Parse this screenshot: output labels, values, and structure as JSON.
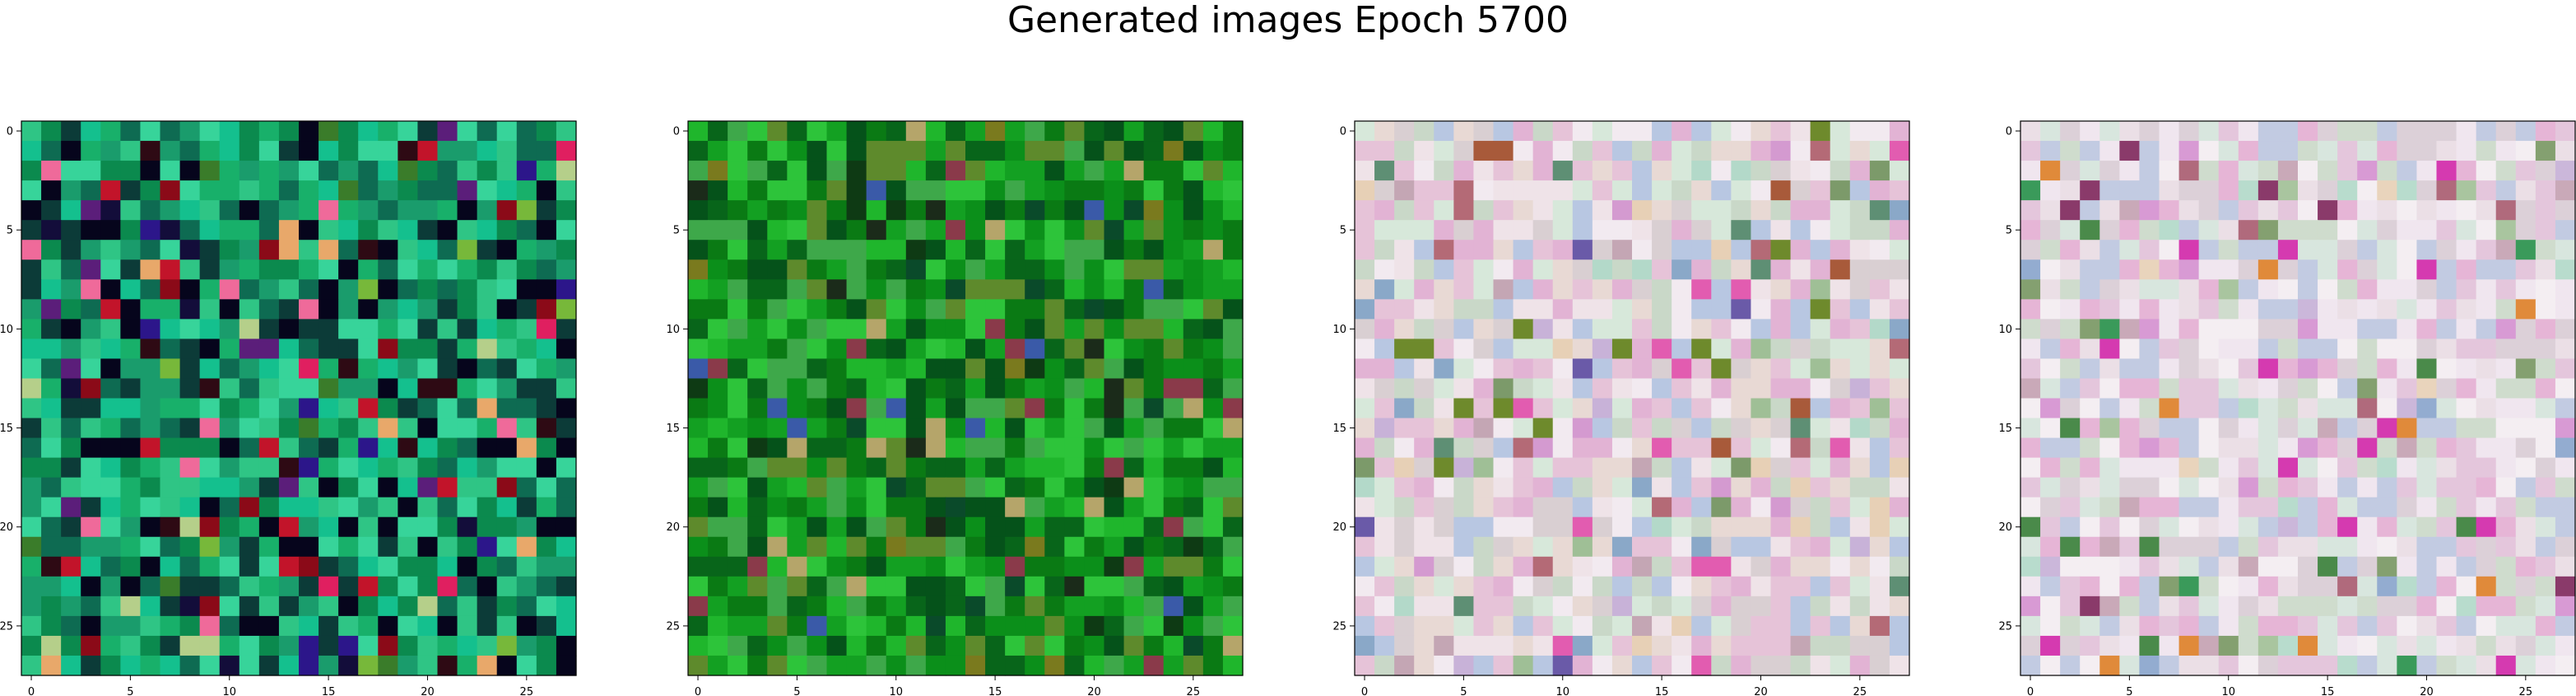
{
  "figure": {
    "title": "Generated images Epoch 5700"
  },
  "chart_data": [
    {
      "type": "heatmap",
      "title": "",
      "xlabel": "",
      "ylabel": "",
      "size": [
        28,
        28
      ],
      "xlim": [
        -0.5,
        27.5
      ],
      "ylim": [
        27.5,
        -0.5
      ],
      "x_ticks": [
        0,
        5,
        10,
        15,
        20,
        25
      ],
      "y_ticks": [
        0,
        5,
        10,
        15,
        20,
        25
      ],
      "grid": false,
      "palette": [
        "#0b8a4e",
        "#18b06a",
        "#2fc585",
        "#37d49a",
        "#1a9c6c",
        "#0e6b52",
        "#14c08e",
        "#0c3b38",
        "#06051c",
        "#130d3a",
        "#2e0a14",
        "#8b0a18",
        "#c2142a",
        "#e01f60",
        "#ef6a9a",
        "#3a7c2a",
        "#77b83a",
        "#b5cf8a",
        "#e8a86a",
        "#5b1e7a",
        "#2c168a"
      ],
      "seed": 11
    },
    {
      "type": "heatmap",
      "title": "",
      "xlabel": "",
      "ylabel": "",
      "size": [
        28,
        28
      ],
      "xlim": [
        -0.5,
        27.5
      ],
      "ylim": [
        27.5,
        -0.5
      ],
      "x_ticks": [
        0,
        5,
        10,
        15,
        20,
        25
      ],
      "y_ticks": [
        0,
        5,
        10,
        15,
        20,
        25
      ],
      "grid": false,
      "palette": [
        "#0a7a14",
        "#0b8f1a",
        "#13a022",
        "#1fb62c",
        "#08651a",
        "#05521a",
        "#2dc43a",
        "#3ea84a",
        "#5e8a2c",
        "#7a7a1e",
        "#0a4a2a",
        "#1b2b1a",
        "#8a3a4a",
        "#3a5aa8",
        "#b5a56a",
        "#0e3a14"
      ],
      "seed": 23
    },
    {
      "type": "heatmap",
      "title": "",
      "xlabel": "",
      "ylabel": "",
      "size": [
        28,
        28
      ],
      "xlim": [
        -0.5,
        27.5
      ],
      "ylim": [
        27.5,
        -0.5
      ],
      "x_ticks": [
        0,
        5,
        10,
        15,
        20,
        25
      ],
      "y_ticks": [
        0,
        5,
        10,
        15,
        20,
        25
      ],
      "grid": false,
      "palette": [
        "#e8d9d4",
        "#efe3e8",
        "#d9cfd2",
        "#e6c3d8",
        "#c9d8c8",
        "#d7e8da",
        "#b8c7e2",
        "#e2b3d4",
        "#f2eaf0",
        "#c4a6b4",
        "#9fbf96",
        "#8aa8c8",
        "#d49ad0",
        "#e7d0b6",
        "#b3d9c9",
        "#c8b2d8",
        "#7c9a6a",
        "#b46a76",
        "#6a5aa8",
        "#e25cb0",
        "#6e8a2c",
        "#a85a3a",
        "#5e8f74"
      ],
      "seed": 37
    },
    {
      "type": "heatmap",
      "title": "",
      "xlabel": "",
      "ylabel": "",
      "size": [
        28,
        28
      ],
      "xlim": [
        -0.5,
        27.5
      ],
      "ylim": [
        27.5,
        -0.5
      ],
      "x_ticks": [
        0,
        5,
        10,
        15,
        20,
        25
      ],
      "y_ticks": [
        0,
        5,
        10,
        15,
        20,
        25
      ],
      "grid": false,
      "palette": [
        "#ebdfe6",
        "#f0e6ef",
        "#dcd0d8",
        "#e4c6dc",
        "#cfdccd",
        "#d8e6de",
        "#c2cbe2",
        "#e6b5d6",
        "#f4eef2",
        "#c9a9b8",
        "#a9c59f",
        "#93acd0",
        "#d89ad4",
        "#e9d4bc",
        "#b8dccd",
        "#cbb7da",
        "#84a070",
        "#b06a7c",
        "#d53ab0",
        "#e08a3a",
        "#4a8a4a",
        "#8a3a6a",
        "#3a9a5a"
      ],
      "seed": 53
    }
  ]
}
